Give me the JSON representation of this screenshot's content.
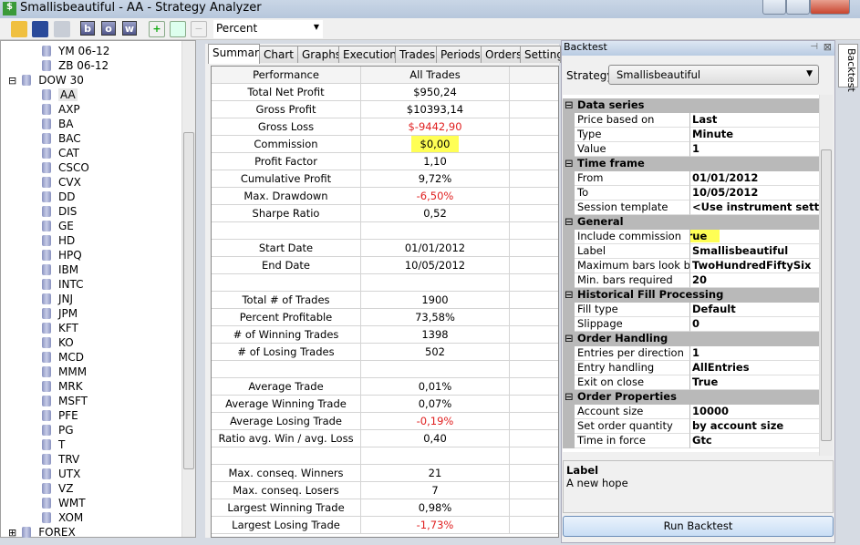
{
  "window": {
    "title": "Smallisbeautiful - AA - Strategy Analyzer"
  },
  "toolbar": {
    "buttons": [
      "open-folder",
      "save",
      "presentation",
      "b",
      "o",
      "w",
      "add",
      "edit",
      "remove"
    ],
    "letters": {
      "b": "b",
      "o": "o",
      "w": "w"
    },
    "display_unit": "Percent"
  },
  "tree": {
    "items": [
      {
        "label": "YM 06-12",
        "level": 2
      },
      {
        "label": "ZB 06-12",
        "level": 2
      },
      {
        "label": "DOW 30",
        "level": 1,
        "expander": "⊟"
      },
      {
        "label": "AA",
        "level": 2,
        "selected": true
      },
      {
        "label": "AXP",
        "level": 2
      },
      {
        "label": "BA",
        "level": 2
      },
      {
        "label": "BAC",
        "level": 2
      },
      {
        "label": "CAT",
        "level": 2
      },
      {
        "label": "CSCO",
        "level": 2
      },
      {
        "label": "CVX",
        "level": 2
      },
      {
        "label": "DD",
        "level": 2
      },
      {
        "label": "DIS",
        "level": 2
      },
      {
        "label": "GE",
        "level": 2
      },
      {
        "label": "HD",
        "level": 2
      },
      {
        "label": "HPQ",
        "level": 2
      },
      {
        "label": "IBM",
        "level": 2
      },
      {
        "label": "INTC",
        "level": 2
      },
      {
        "label": "JNJ",
        "level": 2
      },
      {
        "label": "JPM",
        "level": 2
      },
      {
        "label": "KFT",
        "level": 2
      },
      {
        "label": "KO",
        "level": 2
      },
      {
        "label": "MCD",
        "level": 2
      },
      {
        "label": "MMM",
        "level": 2
      },
      {
        "label": "MRK",
        "level": 2
      },
      {
        "label": "MSFT",
        "level": 2
      },
      {
        "label": "PFE",
        "level": 2
      },
      {
        "label": "PG",
        "level": 2
      },
      {
        "label": "T",
        "level": 2
      },
      {
        "label": "TRV",
        "level": 2
      },
      {
        "label": "UTX",
        "level": 2
      },
      {
        "label": "VZ",
        "level": 2
      },
      {
        "label": "WMT",
        "level": 2
      },
      {
        "label": "XOM",
        "level": 2
      },
      {
        "label": "FOREX",
        "level": 1,
        "expander": "⊞"
      }
    ]
  },
  "tabs": [
    "Summary",
    "Chart",
    "Graphs",
    "Executions",
    "Trades",
    "Periods",
    "Orders",
    "Settings"
  ],
  "active_tab": "Summary",
  "summary": {
    "headers": [
      "Performance",
      "All Trades",
      ""
    ],
    "rows": [
      [
        "Total Net Profit",
        "$950,24"
      ],
      [
        "Gross Profit",
        "$10393,14"
      ],
      [
        "Gross Loss",
        "$-9442,90",
        "neg"
      ],
      [
        "Commission",
        "$0,00",
        "hl"
      ],
      [
        "Profit Factor",
        "1,10"
      ],
      [
        "Cumulative Profit",
        "9,72%"
      ],
      [
        "Max. Drawdown",
        "-6,50%",
        "neg"
      ],
      [
        "Sharpe Ratio",
        "0,52"
      ],
      [
        "",
        ""
      ],
      [
        "Start Date",
        "01/01/2012"
      ],
      [
        "End Date",
        "10/05/2012"
      ],
      [
        "",
        ""
      ],
      [
        "Total # of Trades",
        "1900"
      ],
      [
        "Percent Profitable",
        "73,58%"
      ],
      [
        "# of Winning Trades",
        "1398"
      ],
      [
        "# of Losing Trades",
        "502"
      ],
      [
        "",
        ""
      ],
      [
        "Average Trade",
        "0,01%"
      ],
      [
        "Average Winning Trade",
        "0,07%"
      ],
      [
        "Average Losing Trade",
        "-0,19%",
        "neg"
      ],
      [
        "Ratio avg. Win / avg. Loss",
        "0,40"
      ],
      [
        "",
        ""
      ],
      [
        "Max. conseq. Winners",
        "21"
      ],
      [
        "Max. conseq. Losers",
        "7"
      ],
      [
        "Largest Winning Trade",
        "0,98%"
      ],
      [
        "Largest Losing Trade",
        "-1,73%",
        "neg"
      ]
    ]
  },
  "backtest": {
    "panel_title": "Backtest",
    "strategy_label": "Strategy:",
    "strategy": "Smallisbeautiful",
    "properties": [
      {
        "category": "Data series"
      },
      {
        "name": "Price based on",
        "value": "Last"
      },
      {
        "name": "Type",
        "value": "Minute"
      },
      {
        "name": "Value",
        "value": "1"
      },
      {
        "category": "Time frame"
      },
      {
        "name": "From",
        "value": "01/01/2012"
      },
      {
        "name": "To",
        "value": "10/05/2012"
      },
      {
        "name": "Session template",
        "value": "<Use instrument settings"
      },
      {
        "category": "General"
      },
      {
        "name": "Include commission",
        "value": "True",
        "highlight": true
      },
      {
        "name": "Label",
        "value": "Smallisbeautiful"
      },
      {
        "name": "Maximum bars look back",
        "value": "TwoHundredFiftySix"
      },
      {
        "name": "Min. bars required",
        "value": "20"
      },
      {
        "category": "Historical Fill Processing"
      },
      {
        "name": "Fill type",
        "value": "Default"
      },
      {
        "name": "Slippage",
        "value": "0"
      },
      {
        "category": "Order Handling"
      },
      {
        "name": "Entries per direction",
        "value": "1"
      },
      {
        "name": "Entry handling",
        "value": "AllEntries"
      },
      {
        "name": "Exit on close",
        "value": "True"
      },
      {
        "category": "Order Properties"
      },
      {
        "name": "Account size",
        "value": "10000"
      },
      {
        "name": "Set order quantity",
        "value": "by account size"
      },
      {
        "name": "Time in force",
        "value": "Gtc"
      }
    ],
    "description_title": "Label",
    "description": "A new hope",
    "run_button": "Run Backtest",
    "side_tab": "Backtest"
  },
  "colors": {
    "negative": "#e02020",
    "highlight": "#ffff55",
    "category": "#b9b9b9"
  }
}
